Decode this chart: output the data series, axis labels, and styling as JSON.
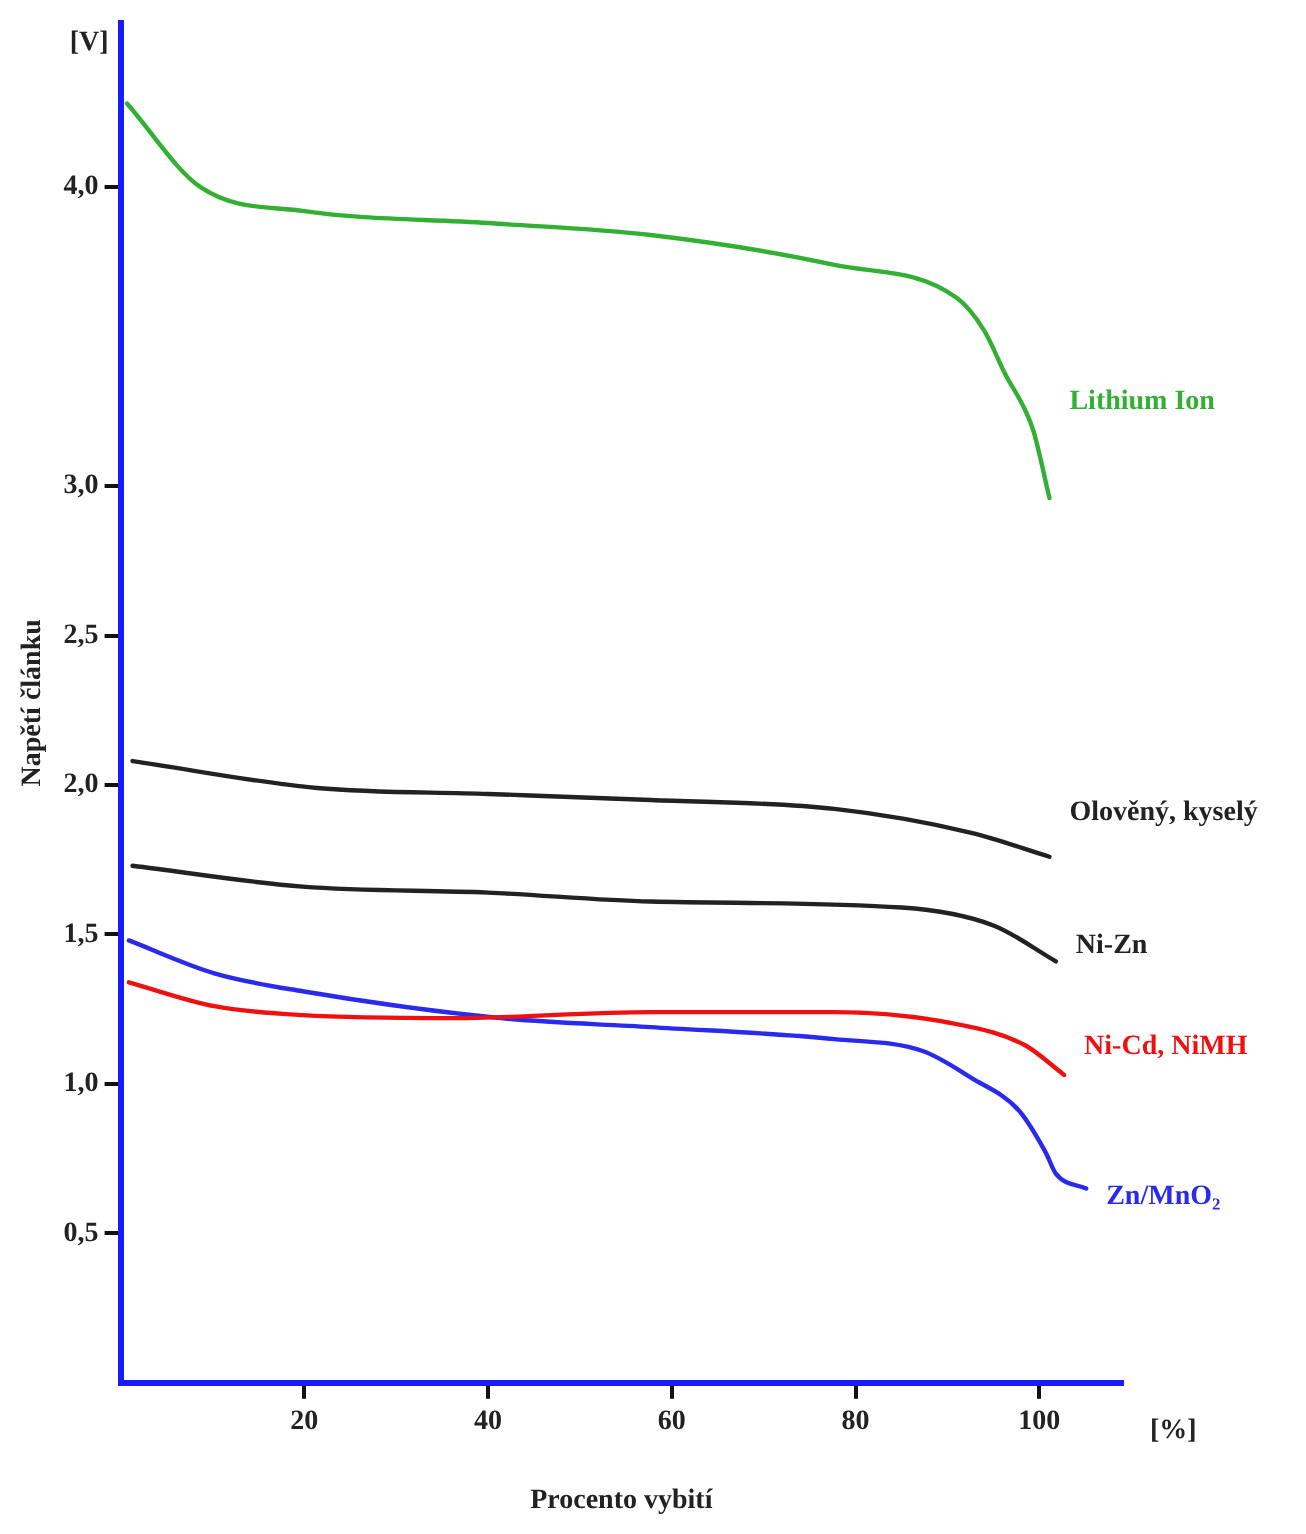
{
  "chart_data": {
    "type": "line",
    "xlabel": "Procento vybití",
    "ylabel": "Napětí článku",
    "annotations": [
      "[V]",
      "[%]"
    ],
    "xlim": [
      0,
      109
    ],
    "xticks": [
      20,
      40,
      60,
      80,
      100
    ],
    "ylim": [
      0,
      4.55
    ],
    "yticks": [
      {
        "value": 0.5,
        "label": "0,5"
      },
      {
        "value": 1.0,
        "label": "1,0"
      },
      {
        "value": 1.5,
        "label": "1,5"
      },
      {
        "value": 2.0,
        "label": "2,0"
      },
      {
        "value": 2.5,
        "label": "2,5"
      },
      {
        "value": 3.0,
        "label": "3,0"
      },
      {
        "value": 4.0,
        "label": "4,0"
      }
    ],
    "grid": false,
    "legend": false,
    "marker": "none",
    "line_style": "solid",
    "series": [
      {
        "name": "Lithium Ion",
        "color": "#33b033",
        "x": [
          0.7,
          8.7,
          20,
          40,
          57.7,
          77.7,
          91,
          94,
          96.2,
          99.3,
          101.1
        ],
        "values": [
          4.28,
          4.0,
          3.92,
          3.88,
          3.84,
          3.74,
          3.63,
          3.52,
          3.38,
          3.19,
          2.96
        ]
      },
      {
        "name": "Olověný, kyselý",
        "color": "#222222",
        "x": [
          1.3,
          21.4,
          40,
          57.7,
          77.7,
          92.6,
          101.1
        ],
        "values": [
          2.08,
          1.99,
          1.97,
          1.95,
          1.92,
          1.84,
          1.76
        ]
      },
      {
        "name": "Ni-Zn",
        "color": "#222222",
        "x": [
          1.3,
          19.8,
          40,
          57.7,
          85,
          95,
          101.8
        ],
        "values": [
          1.73,
          1.66,
          1.64,
          1.61,
          1.59,
          1.53,
          1.41
        ]
      },
      {
        "name": "Ni-Cd, NiMH",
        "color": "#ee1111",
        "x": [
          0.9,
          10.2,
          19.8,
          36,
          57.7,
          77.7,
          91,
          98.4,
          102.7
        ],
        "values": [
          1.34,
          1.26,
          1.23,
          1.22,
          1.24,
          1.24,
          1.2,
          1.13,
          1.03
        ]
      },
      {
        "name": "Zn/MnO₂",
        "color": "#2a2aee",
        "x": [
          0.9,
          10.2,
          19.8,
          41.4,
          57.7,
          77.7,
          87.3,
          92.6,
          97.8,
          100.7,
          101.8,
          105.1
        ],
        "values": [
          1.48,
          1.37,
          1.31,
          1.22,
          1.19,
          1.15,
          1.11,
          1.02,
          0.91,
          0.77,
          0.7,
          0.65
        ]
      }
    ]
  }
}
